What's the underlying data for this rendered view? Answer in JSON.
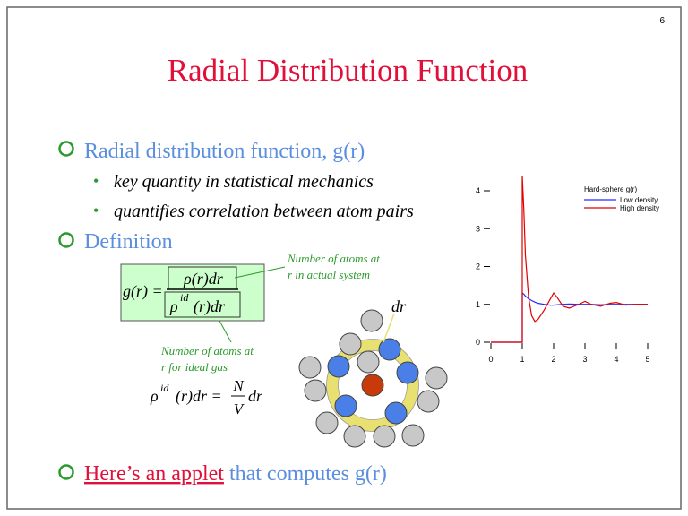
{
  "slide_number": "6",
  "title": "Radial Distribution Function",
  "bullets": [
    {
      "text": "Radial distribution function, g(r)",
      "sub": [
        "key quantity in statistical mechanics",
        "quantifies correlation between atom pairs"
      ]
    },
    {
      "text": "Definition"
    }
  ],
  "equation_definition": {
    "lhs": "g(r) =",
    "numerator": "ρ(r)dr",
    "den_symbol": "ρ",
    "den_sup": "id",
    "den_rest": "(r)dr"
  },
  "annotation_actual": [
    "Number of atoms at",
    "r in actual system"
  ],
  "annotation_ideal": [
    "Number of atoms at",
    "r for ideal gas"
  ],
  "equation_ideal": {
    "symbol": "ρ",
    "sup": "id",
    "rest": "(r)dr =",
    "num": "N",
    "den": "V",
    "tail": "dr"
  },
  "diagram_label": "dr",
  "last_bullet": {
    "link": "Here’s an applet",
    "rest": "that computes g(r)"
  },
  "chart_data": {
    "type": "line",
    "title": "Hard-sphere g(r)",
    "x": [
      0,
      1,
      1,
      1.05,
      1.1,
      1.2,
      1.3,
      1.4,
      1.5,
      1.7,
      1.9,
      2.0,
      2.1,
      2.3,
      2.5,
      2.8,
      3.0,
      3.2,
      3.5,
      3.8,
      4.0,
      4.3,
      4.6,
      5
    ],
    "series": [
      {
        "name": "Low density",
        "color": "#2a2aff",
        "values": [
          0,
          0,
          1.3,
          1.27,
          1.22,
          1.15,
          1.1,
          1.06,
          1.03,
          1.0,
          0.98,
          0.98,
          0.99,
          1.0,
          1.01,
          1.0,
          1.0,
          1.0,
          0.99,
          1.0,
          1.0,
          1.0,
          1.0,
          1.0
        ]
      },
      {
        "name": "High density",
        "color": "#e00000",
        "values": [
          0,
          0,
          4.4,
          3.5,
          2.3,
          1.2,
          0.7,
          0.55,
          0.6,
          0.85,
          1.15,
          1.3,
          1.2,
          0.95,
          0.9,
          1.0,
          1.08,
          1.0,
          0.95,
          1.03,
          1.05,
          0.98,
          1.0,
          1.0
        ]
      }
    ],
    "xlim": [
      0,
      5
    ],
    "ylim": [
      0,
      4.5
    ],
    "xticks": [
      0,
      1,
      2,
      3,
      4,
      5
    ],
    "yticks": [
      0,
      1,
      2,
      3,
      4
    ],
    "legend": "upper right"
  }
}
